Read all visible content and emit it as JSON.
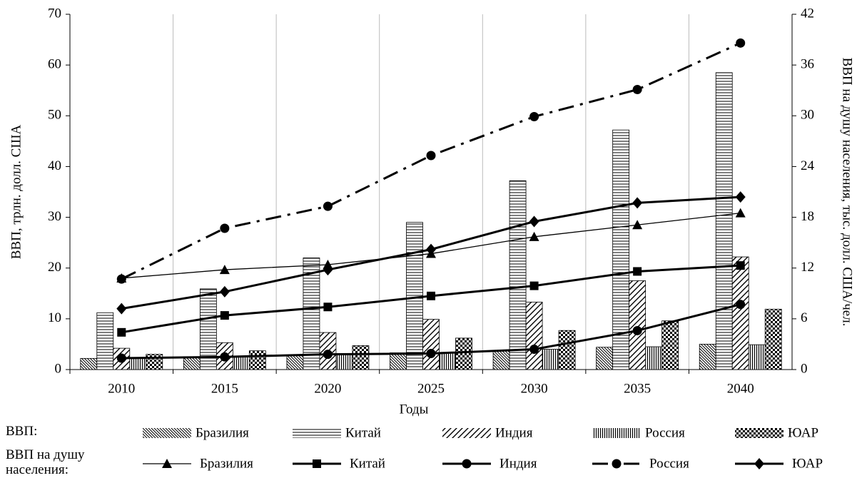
{
  "chart_data": {
    "type": "bar",
    "x_label": "Годы",
    "y_label": "ВВП, трлн. долл. США",
    "y2_label": "ВВП на душу населения, тыс. долл. США/чел.",
    "categories": [
      "2010",
      "2015",
      "2020",
      "2025",
      "2030",
      "2035",
      "2040"
    ],
    "ylim": [
      0,
      70
    ],
    "yticks": [
      0,
      10,
      20,
      30,
      40,
      50,
      60,
      70
    ],
    "y2lim": [
      0,
      42
    ],
    "y2ticks": [
      0,
      6,
      12,
      18,
      24,
      30,
      36,
      42
    ],
    "legend_groups": [
      "ВВП:",
      "ВВП на душу населения:"
    ],
    "series": [
      {
        "name": "Бразилия",
        "type": "bar",
        "color": "#000",
        "pattern": "backslash",
        "values": [
          2.2,
          2.5,
          2.8,
          3.3,
          3.8,
          4.4,
          5.0
        ]
      },
      {
        "name": "Китай",
        "type": "bar",
        "color": "#000",
        "pattern": "horizontal",
        "values": [
          11.2,
          15.9,
          22,
          29,
          37.2,
          47.2,
          58.5
        ]
      },
      {
        "name": "Индия",
        "type": "bar",
        "color": "#000",
        "pattern": "slash",
        "values": [
          4.2,
          5.3,
          7.3,
          9.9,
          13.3,
          17.5,
          22.2
        ]
      },
      {
        "name": "Россия",
        "type": "bar",
        "color": "#000",
        "pattern": "vertical",
        "values": [
          2.3,
          2.6,
          3.0,
          3.4,
          4.0,
          4.5,
          4.9
        ]
      },
      {
        "name": "ЮАР",
        "type": "bar",
        "color": "#000",
        "pattern": "checker",
        "values": [
          3.0,
          3.7,
          4.7,
          6.2,
          7.7,
          9.6,
          11.9
        ]
      },
      {
        "name": "Бразилия",
        "type": "line",
        "axis": "y2",
        "color": "#000",
        "dash": "solid",
        "width": 1.3,
        "marker": "triangle",
        "values": [
          10.8,
          11.8,
          12.4,
          13.7,
          15.7,
          17.1,
          18.5
        ]
      },
      {
        "name": "Китай",
        "type": "line",
        "axis": "y2",
        "color": "#000",
        "dash": "solid",
        "width": 3,
        "marker": "square",
        "values": [
          4.4,
          6.4,
          7.4,
          8.7,
          9.9,
          11.6,
          12.3
        ]
      },
      {
        "name": "Индия",
        "type": "line",
        "axis": "y2",
        "color": "#000",
        "dash": "solid",
        "width": 3,
        "marker": "circle",
        "values": [
          1.35,
          1.5,
          1.8,
          1.9,
          2.4,
          4.6,
          7.7
        ]
      },
      {
        "name": "Россия",
        "type": "line",
        "axis": "y2",
        "color": "#000",
        "dash": "dashdot",
        "width": 3,
        "marker": "circle",
        "values": [
          10.7,
          16.7,
          19.3,
          25.3,
          29.9,
          33.1,
          38.6
        ]
      },
      {
        "name": "ЮАР",
        "type": "line",
        "axis": "y2",
        "color": "#000",
        "dash": "solid",
        "width": 3,
        "marker": "diamond",
        "values": [
          7.2,
          9.2,
          11.8,
          14.2,
          17.5,
          19.7,
          20.4
        ]
      }
    ]
  }
}
